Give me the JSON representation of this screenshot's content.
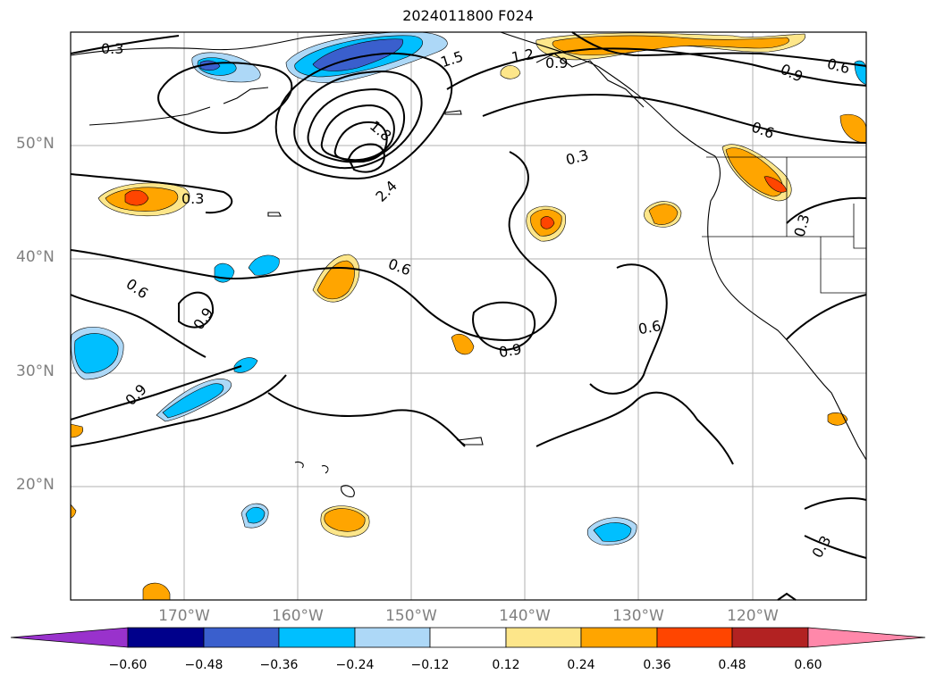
{
  "title": "2024011800 F024",
  "lat_labels": [
    "50°N",
    "40°N",
    "30°N",
    "20°N"
  ],
  "lon_labels": [
    "170°W",
    "160°W",
    "150°W",
    "140°W",
    "130°W",
    "120°W"
  ],
  "contour_labels": [
    "0.3",
    "1.5",
    "1.2",
    "0.9",
    "0.6",
    "0.9",
    "1.8",
    "2.4",
    "0.3",
    "0.6",
    "0.6",
    "0.9",
    "0.9",
    "0.6",
    "0.3",
    "0.3",
    "0.6",
    "0.9",
    "0.3"
  ],
  "colorbar": {
    "ticks": [
      "−0.60",
      "−0.48",
      "−0.36",
      "−0.24",
      "−0.12",
      "0.12",
      "0.24",
      "0.36",
      "0.48",
      "0.60"
    ],
    "colors": [
      "#9932cc",
      "#00008b",
      "#3a5fcd",
      "#00bfff",
      "#add8f7",
      "#ffffff",
      "#fde68a",
      "#ffa500",
      "#ff4500",
      "#b22222",
      "#ff88aa"
    ]
  }
}
